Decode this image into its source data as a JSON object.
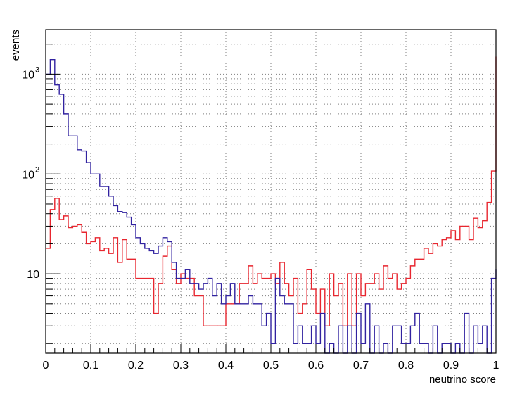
{
  "chart_data": {
    "type": "line",
    "title": "",
    "xlabel": "neutrino score",
    "ylabel": "events",
    "xlim": [
      0,
      1
    ],
    "ylim": [
      1.6,
      2800
    ],
    "yscale": "log",
    "grid": true,
    "legend": "none",
    "x_ticks": [
      "0",
      "0.1",
      "0.2",
      "0.3",
      "0.4",
      "0.5",
      "0.6",
      "0.7",
      "0.8",
      "0.9",
      "1"
    ],
    "y_ticks": [
      {
        "value": 10,
        "label": "10"
      },
      {
        "value": 100,
        "label": "10",
        "exp": "2"
      },
      {
        "value": 1000,
        "label": "10",
        "exp": "3"
      }
    ],
    "bin_width": 0.01,
    "series": [
      {
        "color": "#e8262f",
        "values": [
          18,
          44,
          57,
          35,
          38,
          29,
          30,
          31,
          26,
          20,
          21,
          23,
          17,
          18,
          16,
          23,
          13,
          22,
          14,
          14,
          9,
          9,
          9,
          9,
          4,
          8,
          15,
          19,
          11,
          8,
          10,
          9,
          9,
          6,
          6,
          3,
          3,
          3,
          3,
          3,
          5,
          5,
          5,
          8,
          8,
          12,
          8,
          10,
          9,
          9,
          10,
          8,
          13,
          8,
          6,
          9,
          4,
          5,
          11,
          7,
          4,
          7,
          3,
          10,
          6,
          8,
          3,
          10,
          3,
          10,
          6,
          8,
          8,
          10,
          7,
          12,
          9,
          10,
          7,
          8,
          9,
          12,
          14,
          14,
          18,
          16,
          20,
          19,
          22,
          23,
          27,
          22,
          30,
          30,
          22,
          36,
          29,
          34,
          52,
          107,
          1500
        ]
      },
      {
        "color": "#3122a0",
        "values": [
          1000,
          1400,
          780,
          630,
          400,
          240,
          240,
          175,
          170,
          130,
          100,
          100,
          75,
          75,
          60,
          48,
          42,
          41,
          37,
          31,
          23,
          20,
          18,
          17,
          16,
          19,
          23,
          21,
          13,
          9,
          9,
          11,
          8,
          8,
          7,
          8,
          9,
          6,
          8,
          5,
          6,
          8,
          5,
          5,
          5,
          6,
          5,
          5,
          3,
          4,
          2,
          9,
          6,
          5,
          5,
          2,
          3,
          2,
          2,
          3,
          2,
          4,
          1,
          2,
          1,
          3,
          1,
          3,
          1,
          4,
          2,
          5,
          1,
          3,
          1,
          2,
          1,
          3,
          3,
          2,
          2,
          3,
          4,
          2,
          2,
          1,
          3,
          1,
          2,
          2,
          1,
          2,
          1,
          4,
          1,
          3,
          2,
          3,
          1,
          9,
          11
        ]
      }
    ]
  }
}
